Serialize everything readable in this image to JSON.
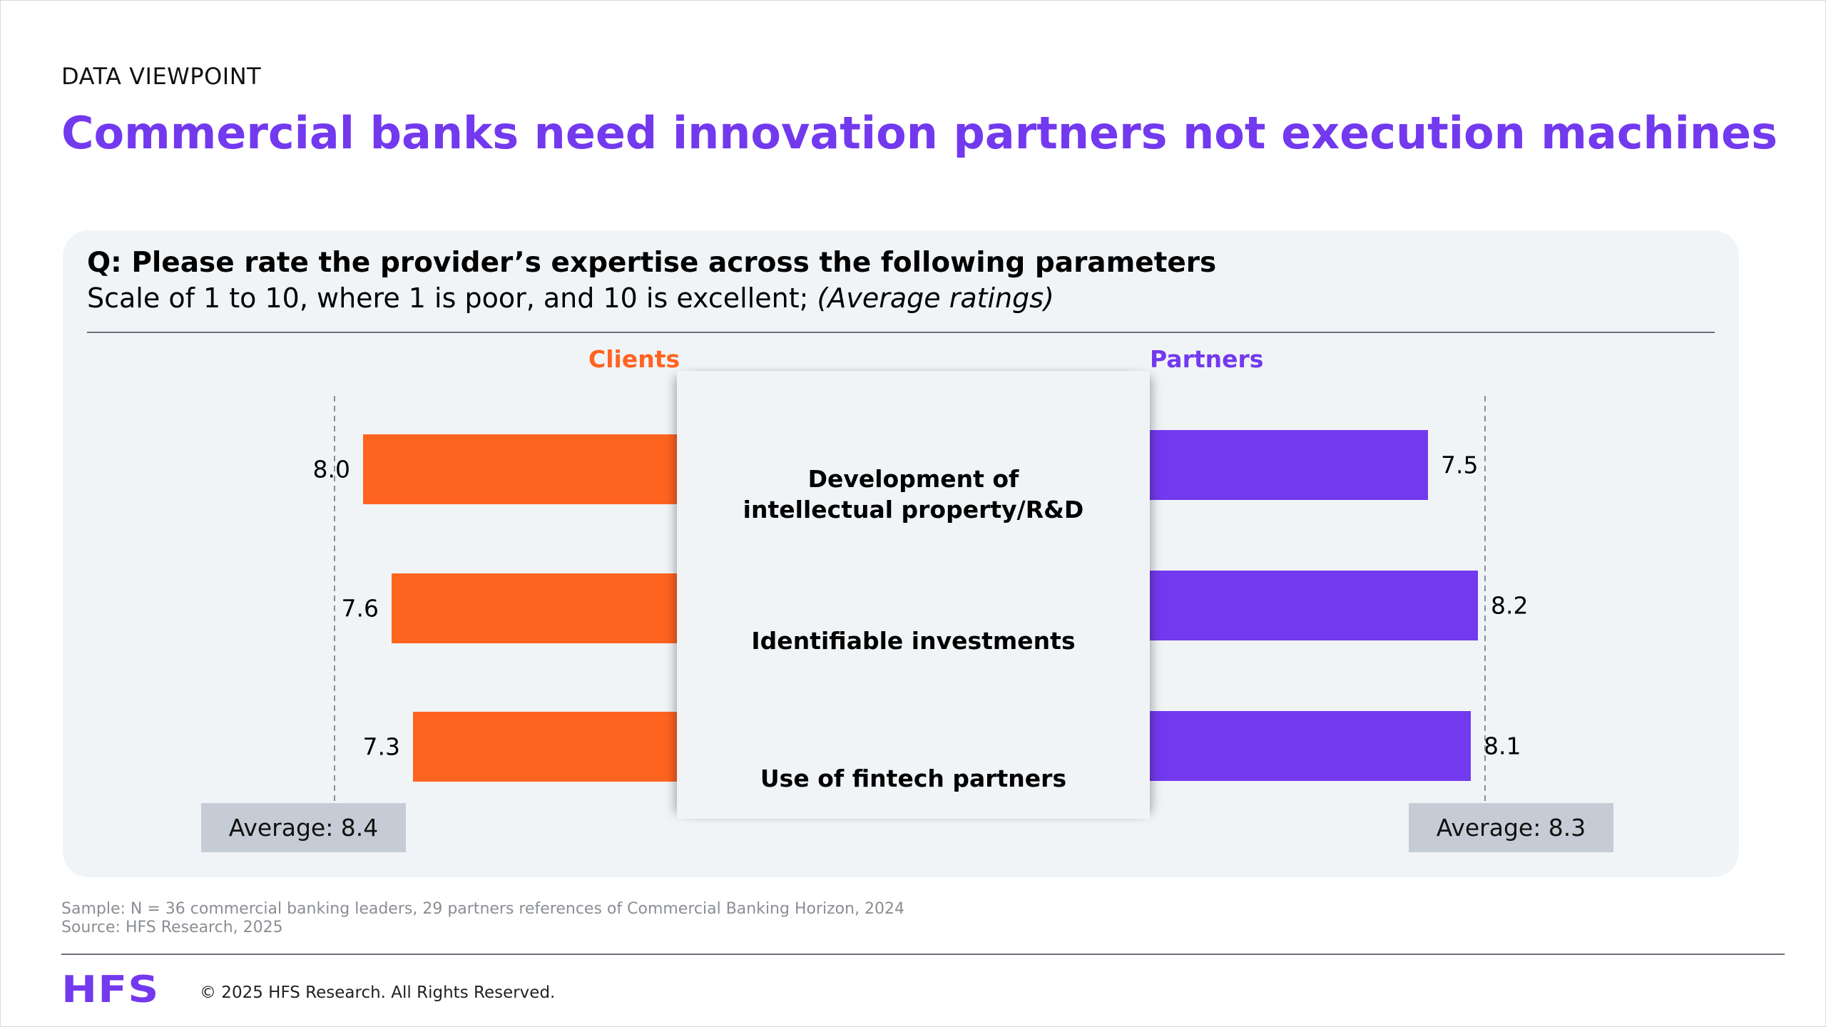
{
  "eyebrow": "DATA VIEWPOINT",
  "headline": "Commercial banks need innovation partners not execution machines",
  "question": "Q: Please rate the provider’s expertise across the following parameters",
  "scale_text": "Scale of 1 to 10, where 1 is poor, and 10 is excellent;",
  "scale_note": "(Average ratings)",
  "colors": {
    "clients": "#ff6320",
    "partners": "#7339ee",
    "headline": "#7339ee"
  },
  "chart_data": {
    "type": "bar",
    "orientation": "horizontal-butterfly",
    "categories": [
      "Development of\nintellectual property/R&D",
      "Identifiable investments",
      "Use of fintech partners"
    ],
    "series": [
      {
        "name": "Clients",
        "values": [
          8.0,
          7.6,
          7.3
        ],
        "labels": [
          "8.0",
          "7.6",
          "7.3"
        ],
        "average": 8.4,
        "average_label": "Average: 8.4"
      },
      {
        "name": "Partners",
        "values": [
          7.5,
          8.2,
          8.1
        ],
        "labels": [
          "7.5",
          "8.2",
          "8.1"
        ],
        "average": 8.3,
        "average_label": "Average: 8.3"
      }
    ],
    "scale_range": [
      1,
      10
    ],
    "grid": false,
    "legend": "none"
  },
  "footnotes": {
    "sample": "Sample: N = 36 commercial banking leaders, 29 partners references of Commercial Banking Horizon, 2024",
    "source": "Source: HFS Research, 2025"
  },
  "footer": {
    "logo": "HFS",
    "copyright": "© 2025 HFS Research. All Rights Reserved."
  }
}
